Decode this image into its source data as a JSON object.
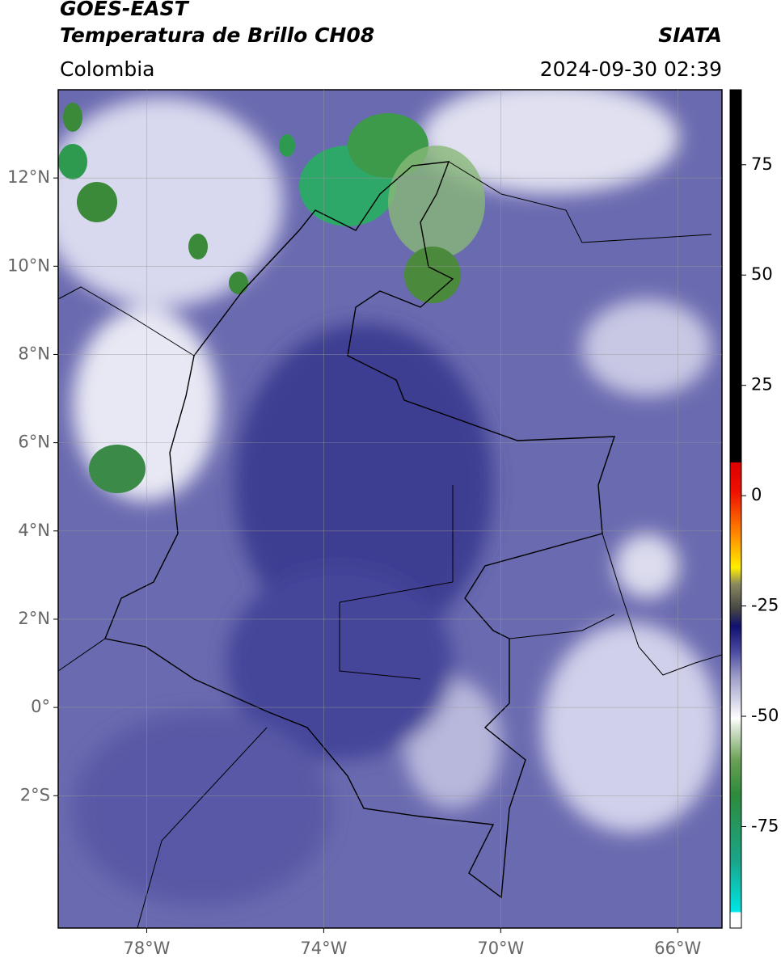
{
  "header": {
    "title": "GOES-EAST",
    "subtitle": "Temperatura de Brillo CH08",
    "source": "SIATA",
    "region": "Colombia",
    "timestamp": "2024-09-30 02:39"
  },
  "map": {
    "xlim": [
      -80,
      -65
    ],
    "ylim": [
      -5,
      14
    ],
    "xticks": [
      {
        "value": -78,
        "label": "78°W"
      },
      {
        "value": -74,
        "label": "74°W"
      },
      {
        "value": -70,
        "label": "70°W"
      },
      {
        "value": -66,
        "label": "66°W"
      }
    ],
    "yticks": [
      {
        "value": 12,
        "label": "12°N"
      },
      {
        "value": 10,
        "label": "10°N"
      },
      {
        "value": 8,
        "label": "8°N"
      },
      {
        "value": 6,
        "label": "6°N"
      },
      {
        "value": 4,
        "label": "4°N"
      },
      {
        "value": 2,
        "label": "2°N"
      },
      {
        "value": 0,
        "label": "0°"
      },
      {
        "value": -2,
        "label": "2°S"
      }
    ],
    "grid": true
  },
  "colorbar": {
    "clim": [
      -98,
      92
    ],
    "ticks": [
      75,
      50,
      25,
      0,
      -25,
      -50,
      -75
    ]
  }
}
